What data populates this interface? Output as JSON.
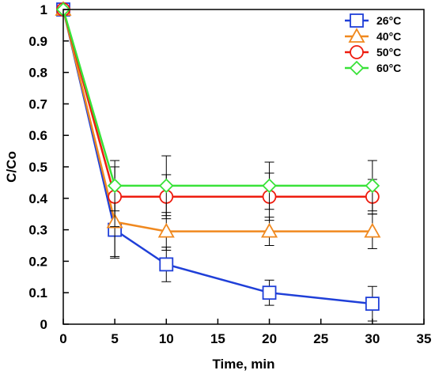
{
  "chart_data": {
    "type": "line",
    "xlabel": "Time, min",
    "ylabel": "C/Co",
    "xlim": [
      0,
      35
    ],
    "ylim": [
      0,
      1
    ],
    "xticks": [
      "0",
      "5",
      "10",
      "15",
      "20",
      "25",
      "30",
      "35"
    ],
    "yticks": [
      "0",
      "0.1",
      "0.2",
      "0.3",
      "0.4",
      "0.5",
      "0.6",
      "0.7",
      "0.8",
      "0.9",
      "1"
    ],
    "grid": false,
    "legend_position": "top-right",
    "series": [
      {
        "name": "26°C",
        "color": "#1f3fd8",
        "marker": "square",
        "points": [
          {
            "x": 0,
            "y": 1.0,
            "err": 0
          },
          {
            "x": 5,
            "y": 0.3,
            "err": 0.09
          },
          {
            "x": 10,
            "y": 0.19,
            "err": 0.055
          },
          {
            "x": 20,
            "y": 0.1,
            "err": 0.04
          },
          {
            "x": 30,
            "y": 0.065,
            "err": 0.055
          }
        ]
      },
      {
        "name": "40°C",
        "color": "#f0891f",
        "marker": "triangle",
        "points": [
          {
            "x": 0,
            "y": 1.0,
            "err": 0
          },
          {
            "x": 5,
            "y": 0.325,
            "err": 0.11
          },
          {
            "x": 10,
            "y": 0.295,
            "err": 0.06
          },
          {
            "x": 20,
            "y": 0.295,
            "err": 0.045
          },
          {
            "x": 30,
            "y": 0.295,
            "err": 0.055
          }
        ]
      },
      {
        "name": "50°C",
        "color": "#ee1c0f",
        "marker": "circle",
        "points": [
          {
            "x": 0,
            "y": 1.0,
            "err": 0
          },
          {
            "x": 5,
            "y": 0.405,
            "err": 0.095
          },
          {
            "x": 10,
            "y": 0.405,
            "err": 0.07
          },
          {
            "x": 20,
            "y": 0.405,
            "err": 0.075
          },
          {
            "x": 30,
            "y": 0.405,
            "err": 0.055
          }
        ]
      },
      {
        "name": "60°C",
        "color": "#38e238",
        "marker": "diamond",
        "points": [
          {
            "x": 0,
            "y": 1.0,
            "err": 0
          },
          {
            "x": 5,
            "y": 0.44,
            "err": 0.08
          },
          {
            "x": 10,
            "y": 0.44,
            "err": 0.095
          },
          {
            "x": 20,
            "y": 0.44,
            "err": 0.075
          },
          {
            "x": 30,
            "y": 0.44,
            "err": 0.08
          }
        ]
      }
    ]
  }
}
